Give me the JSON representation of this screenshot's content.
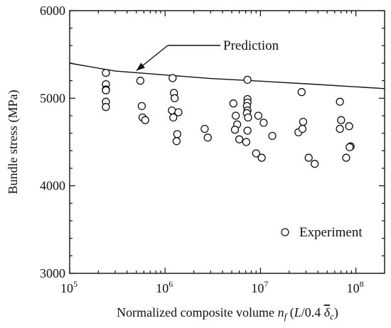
{
  "chart_data": {
    "type": "scatter",
    "xscale": "log",
    "xlim": [
      100000,
      200000000
    ],
    "ylim": [
      3000,
      6000
    ],
    "ylabel": "Bundle stress (MPa)",
    "xlabel": {
      "prefix": "Normalized composite volume ",
      "n": "n",
      "n_sub": "f",
      "paren_open": " (",
      "L": "L",
      "mid": "/0.4 ",
      "delta": "δ",
      "delta_sub": "c",
      "paren_close": ")"
    },
    "xticks": [
      {
        "value": 100000,
        "base": "10",
        "exp": "5"
      },
      {
        "value": 1000000,
        "base": "10",
        "exp": "6"
      },
      {
        "value": 10000000,
        "base": "10",
        "exp": "7"
      },
      {
        "value": 100000000,
        "base": "10",
        "exp": "8"
      }
    ],
    "yticks": [
      {
        "value": 3000,
        "label": "3000"
      },
      {
        "value": 4000,
        "label": "4000"
      },
      {
        "value": 5000,
        "label": "5000"
      },
      {
        "value": 6000,
        "label": "6000"
      }
    ],
    "annotation": {
      "text": "Prediction",
      "arrow_to_x": 500000
    },
    "series": [
      {
        "name": "Prediction",
        "kind": "line",
        "x": [
          100000,
          300000,
          1000000,
          3000000,
          10000000,
          30000000,
          100000000,
          200000000
        ],
        "y": [
          5400,
          5310,
          5265,
          5225,
          5195,
          5165,
          5130,
          5110
        ]
      },
      {
        "name": "Experiment",
        "kind": "scatter",
        "x": [
          240000,
          240000,
          240000,
          240000,
          240000,
          240000,
          550000,
          580000,
          570000,
          620000,
          1200000,
          1240000,
          1260000,
          1180000,
          1220000,
          1380000,
          1340000,
          1320000,
          2600000,
          2800000,
          5200000,
          5500000,
          5700000,
          5400000,
          6000000,
          7300000,
          7300000,
          7300000,
          7200000,
          7300000,
          7200000,
          7400000,
          7300000,
          7100000,
          9000000,
          9500000,
          10300000,
          10800000,
          13300000,
          25000000,
          27000000,
          28000000,
          27500000,
          32000000,
          37000000,
          68000000,
          70000000,
          68000000,
          79000000,
          85000000,
          88000000,
          86000000
        ],
        "y": [
          5290,
          5160,
          5100,
          5090,
          4960,
          4900,
          5200,
          4780,
          4910,
          4750,
          5230,
          5060,
          5000,
          4860,
          4780,
          4840,
          4590,
          4510,
          4650,
          4550,
          4940,
          4800,
          4700,
          4640,
          4530,
          5210,
          4990,
          4950,
          4910,
          4860,
          4830,
          4780,
          4630,
          4500,
          4370,
          4800,
          4320,
          4720,
          4570,
          4610,
          5070,
          4730,
          4650,
          4320,
          4250,
          4960,
          4750,
          4650,
          4320,
          4680,
          4450,
          4440
        ]
      }
    ],
    "legend": {
      "position": "bottom-right",
      "label": "Experiment"
    },
    "grid": false
  }
}
